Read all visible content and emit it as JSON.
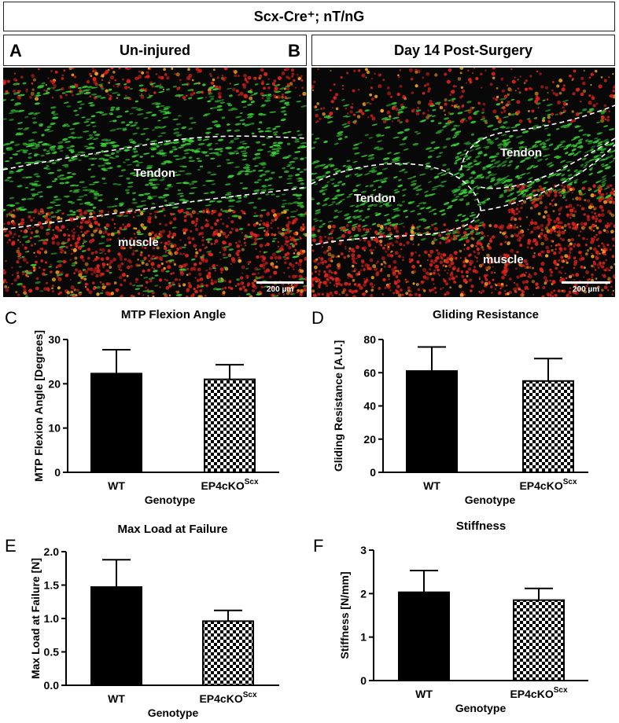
{
  "header": {
    "title": "Scx-Cre⁺; nT/nG"
  },
  "panelA": {
    "letter": "A",
    "title": "Un-injured",
    "label_tendon": "Tendon",
    "label_muscle": "muscle",
    "scale": "200 µm"
  },
  "panelB": {
    "letter": "B",
    "title": "Day 14 Post-Surgery",
    "label_tendon1": "Tendon",
    "label_tendon2": "Tendon",
    "label_muscle": "muscle",
    "scale": "200 µm"
  },
  "colors": {
    "bar_wt": "#000000",
    "checker_dark": "#000000",
    "checker_light": "#ffffff",
    "green": "#39d236",
    "red": "#e0221c"
  },
  "chart_data": [
    {
      "letter": "C",
      "type": "bar",
      "title": "MTP Flexion Angle",
      "ylabel": "MTP Flexion Angle [Degrees]",
      "xlabel": "Genotype",
      "categories": [
        "WT",
        "EP4cKO"
      ],
      "category_sup": [
        "",
        "Scx"
      ],
      "values": [
        22.3,
        21.0
      ],
      "errors": [
        5.4,
        3.3
      ],
      "ylim": [
        0,
        30
      ],
      "ticks": [
        0,
        10,
        20,
        30
      ],
      "tick_labels": [
        "0",
        "10",
        "20",
        "30"
      ]
    },
    {
      "letter": "D",
      "type": "bar",
      "title": "Gliding Resistance",
      "ylabel": "Gliding Resistance [A.U.]",
      "xlabel": "Genotype",
      "categories": [
        "WT",
        "EP4cKO"
      ],
      "category_sup": [
        "",
        "Scx"
      ],
      "values": [
        61,
        55
      ],
      "errors": [
        14.5,
        13.5
      ],
      "ylim": [
        0,
        80
      ],
      "ticks": [
        0,
        20,
        40,
        60,
        80
      ],
      "tick_labels": [
        "0",
        "20",
        "40",
        "60",
        "80"
      ]
    },
    {
      "letter": "E",
      "type": "bar",
      "title": "Max Load at Failure",
      "ylabel": "Max Load at Failure [N]",
      "xlabel": "Genotype",
      "categories": [
        "WT",
        "EP4cKO"
      ],
      "category_sup": [
        "",
        "Scx"
      ],
      "values": [
        1.47,
        0.96
      ],
      "errors": [
        0.41,
        0.16
      ],
      "ylim": [
        0,
        2.0
      ],
      "ticks": [
        0,
        0.5,
        1.0,
        1.5,
        2.0
      ],
      "tick_labels": [
        "0.0",
        "0.5",
        "1.0",
        "1.5",
        "2.0"
      ]
    },
    {
      "letter": "F",
      "type": "bar",
      "title": "Stiffness",
      "ylabel": "Stiffness [N/mm]",
      "xlabel": "Genotype",
      "categories": [
        "WT",
        "EP4cKO"
      ],
      "category_sup": [
        "",
        "Scx"
      ],
      "values": [
        2.03,
        1.85
      ],
      "errors": [
        0.5,
        0.27
      ],
      "ylim": [
        0,
        3
      ],
      "ticks": [
        0,
        1,
        2,
        3
      ],
      "tick_labels": [
        "0",
        "1",
        "2",
        "3"
      ]
    }
  ]
}
